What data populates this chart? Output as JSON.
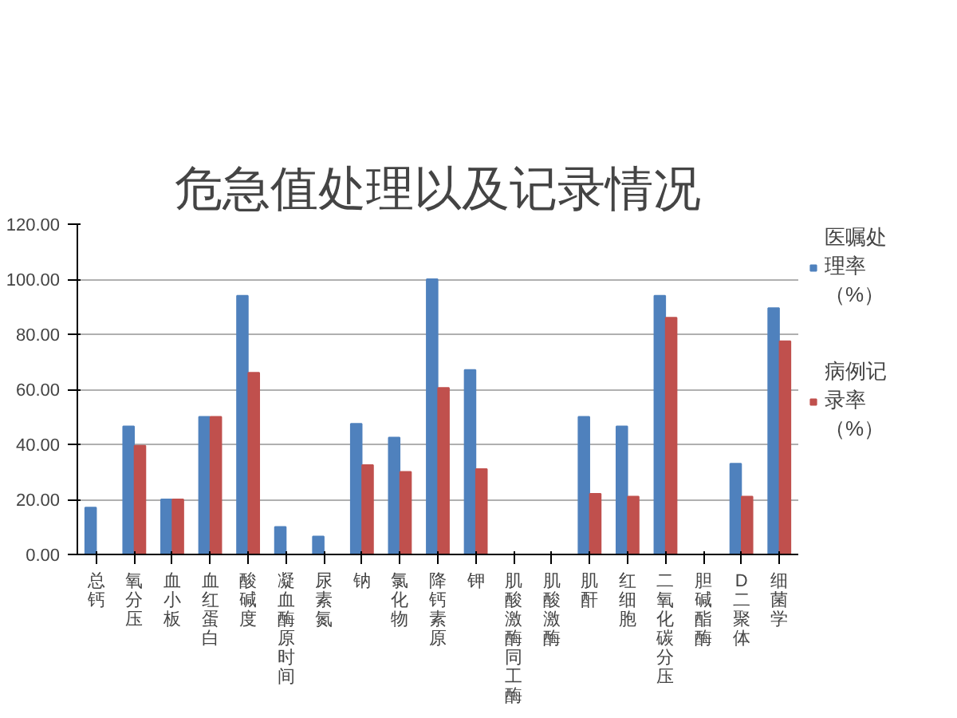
{
  "chart_data": {
    "type": "bar",
    "title": "危急值处理以及记录情况",
    "categories": [
      "总钙",
      "氧分压",
      "血小板",
      "血红蛋白",
      "酸碱度",
      "凝血酶原时间",
      "尿素氮",
      "钠",
      "氯化物",
      "降钙素原",
      "钾",
      "肌酸激酶同工酶",
      "肌酸激酶",
      "肌酐",
      "红细胞",
      "二氧化碳分压",
      "胆碱酯酶",
      "D二聚体",
      "细菌学"
    ],
    "series": [
      {
        "name": "医嘱处理率（%）",
        "color": "#4f81bd",
        "values": [
          17,
          46.5,
          20,
          50,
          94,
          10,
          6.5,
          47.5,
          42.5,
          100,
          67,
          0,
          0,
          50,
          46.5,
          94,
          0,
          33,
          89.5
        ]
      },
      {
        "name": "病例记录率（%）",
        "color": "#c0504d",
        "values": [
          0,
          39.5,
          20,
          50,
          66,
          0,
          0,
          32.5,
          30,
          60.5,
          31,
          0,
          0,
          22,
          21,
          86,
          0,
          21,
          77.5
        ]
      }
    ],
    "ylim": [
      0,
      120
    ],
    "yticks": [
      {
        "value": 0,
        "label": "0.00"
      },
      {
        "value": 20,
        "label": "20.00"
      },
      {
        "value": 40,
        "label": "40.00"
      },
      {
        "value": 60,
        "label": "60.00"
      },
      {
        "value": 80,
        "label": "80.00"
      },
      {
        "value": 100,
        "label": "100.00"
      },
      {
        "value": 120,
        "label": "120.00"
      }
    ],
    "grid": "y",
    "legend": "right"
  }
}
